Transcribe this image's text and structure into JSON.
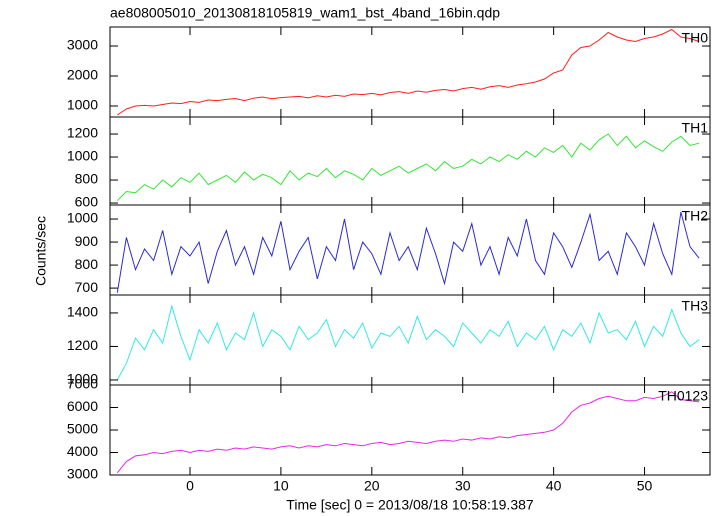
{
  "chart_data": {
    "type": "line",
    "title": "ae808005010_20130818105819_wam1_bst_4band_16bin.qdp",
    "xlabel": "Time [sec] 0 = 2013/08/18 10:58:19.387",
    "ylabel": "Counts/sec",
    "xlim": [
      -8.8,
      57.2
    ],
    "xticks": [
      0,
      10,
      20,
      30,
      40,
      50
    ],
    "x": [
      -8,
      -7,
      -6,
      -5,
      -4,
      -3,
      -2,
      -1,
      0,
      1,
      2,
      3,
      4,
      5,
      6,
      7,
      8,
      9,
      10,
      11,
      12,
      13,
      14,
      15,
      16,
      17,
      18,
      19,
      20,
      21,
      22,
      23,
      24,
      25,
      26,
      27,
      28,
      29,
      30,
      31,
      32,
      33,
      34,
      35,
      36,
      37,
      38,
      39,
      40,
      41,
      42,
      43,
      44,
      45,
      46,
      47,
      48,
      49,
      50,
      51,
      52,
      53,
      54,
      55,
      56
    ],
    "series": [
      {
        "name": "TH0",
        "color": "#ff2020",
        "ylim": [
          633,
          3633
        ],
        "yticks": [
          1000,
          2000,
          3000
        ],
        "values": [
          700,
          900,
          1000,
          1020,
          1000,
          1050,
          1100,
          1080,
          1150,
          1120,
          1200,
          1180,
          1220,
          1250,
          1180,
          1260,
          1300,
          1240,
          1280,
          1300,
          1320,
          1270,
          1340,
          1300,
          1360,
          1320,
          1400,
          1380,
          1420,
          1370,
          1450,
          1480,
          1420,
          1500,
          1460,
          1520,
          1550,
          1500,
          1580,
          1620,
          1560,
          1640,
          1680,
          1620,
          1700,
          1740,
          1800,
          1900,
          2100,
          2200,
          2700,
          2950,
          3000,
          3200,
          3450,
          3300,
          3200,
          3150,
          3250,
          3300,
          3400,
          3550,
          3300,
          3250,
          3150
        ]
      },
      {
        "name": "TH1",
        "color": "#33e833",
        "ylim": [
          583,
          1348
        ],
        "yticks": [
          600,
          800,
          1000,
          1200
        ],
        "values": [
          620,
          700,
          690,
          760,
          720,
          800,
          740,
          820,
          780,
          860,
          760,
          800,
          840,
          780,
          870,
          800,
          850,
          820,
          760,
          880,
          800,
          860,
          830,
          900,
          820,
          880,
          850,
          800,
          900,
          840,
          880,
          920,
          860,
          900,
          940,
          880,
          960,
          900,
          920,
          980,
          940,
          1000,
          960,
          1020,
          980,
          1050,
          1000,
          1080,
          1040,
          1100,
          1000,
          1120,
          1060,
          1150,
          1200,
          1100,
          1180,
          1080,
          1140,
          1090,
          1050,
          1130,
          1180,
          1100,
          1120
        ]
      },
      {
        "name": "TH2",
        "color": "#2a2ad8",
        "ylim": [
          670,
          1061
        ],
        "yticks": [
          700,
          800,
          900,
          1000
        ],
        "values": [
          680,
          920,
          780,
          870,
          820,
          950,
          760,
          880,
          840,
          900,
          720,
          860,
          950,
          800,
          880,
          760,
          920,
          840,
          990,
          780,
          860,
          920,
          740,
          880,
          820,
          1000,
          780,
          900,
          850,
          760,
          940,
          820,
          880,
          780,
          960,
          850,
          720,
          900,
          860,
          980,
          800,
          880,
          760,
          920,
          840,
          1000,
          820,
          760,
          940,
          880,
          790,
          900,
          1020,
          820,
          860,
          760,
          940,
          880,
          800,
          980,
          850,
          760,
          1030,
          880,
          830
        ]
      },
      {
        "name": "TH3",
        "color": "#33e8e8",
        "ylim": [
          970,
          1507
        ],
        "yticks": [
          1000,
          1200,
          1400
        ],
        "values": [
          1000,
          1100,
          1250,
          1180,
          1300,
          1220,
          1440,
          1260,
          1120,
          1300,
          1220,
          1340,
          1180,
          1280,
          1240,
          1400,
          1200,
          1300,
          1260,
          1180,
          1320,
          1240,
          1280,
          1360,
          1200,
          1300,
          1250,
          1340,
          1190,
          1280,
          1260,
          1320,
          1220,
          1380,
          1240,
          1300,
          1260,
          1200,
          1340,
          1280,
          1220,
          1300,
          1260,
          1350,
          1200,
          1280,
          1240,
          1320,
          1180,
          1300,
          1260,
          1340,
          1220,
          1400,
          1280,
          1300,
          1240,
          1350,
          1200,
          1320,
          1260,
          1420,
          1280,
          1200,
          1240
        ]
      },
      {
        "name": "TH0123",
        "color": "#e828e8",
        "ylim": [
          3000,
          7000
        ],
        "yticks": [
          3000,
          4000,
          5000,
          6000,
          7000
        ],
        "values": [
          3100,
          3600,
          3850,
          3900,
          4000,
          3950,
          4050,
          4100,
          4000,
          4100,
          4050,
          4150,
          4100,
          4200,
          4150,
          4250,
          4200,
          4150,
          4250,
          4300,
          4200,
          4300,
          4250,
          4350,
          4300,
          4400,
          4350,
          4300,
          4400,
          4450,
          4350,
          4400,
          4500,
          4450,
          4400,
          4500,
          4550,
          4500,
          4600,
          4550,
          4650,
          4600,
          4700,
          4650,
          4750,
          4800,
          4850,
          4900,
          5000,
          5300,
          5800,
          6100,
          6200,
          6400,
          6500,
          6400,
          6300,
          6300,
          6450,
          6400,
          6500,
          6700,
          6350,
          6300,
          6250
        ]
      }
    ]
  }
}
